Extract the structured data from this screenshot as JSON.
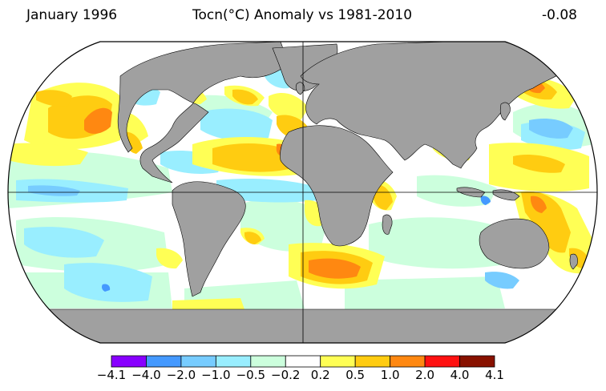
{
  "header": {
    "date": "January 1996",
    "title": "Tocn(°C) Anomaly vs 1981-2010",
    "global_mean": "-0.08"
  },
  "map": {
    "projection": "Robinson",
    "variable": "Ocean temperature anomaly",
    "land_color": "#a0a0a0",
    "gridlines": [
      "equator",
      "prime-meridian"
    ]
  },
  "colorbar": {
    "labels": [
      "−4.1",
      "−4.0",
      "−2.0",
      "−1.0",
      "−0.5",
      "−0.2",
      "0.2",
      "0.5",
      "1.0",
      "2.0",
      "4.0",
      "4.1"
    ],
    "colors": [
      "#8800ff",
      "#4499ff",
      "#77ccff",
      "#99eeff",
      "#ccffdd",
      "#ffffff",
      "#ffff55",
      "#ffcc11",
      "#ff8811",
      "#ff1111",
      "#881100"
    ]
  }
}
